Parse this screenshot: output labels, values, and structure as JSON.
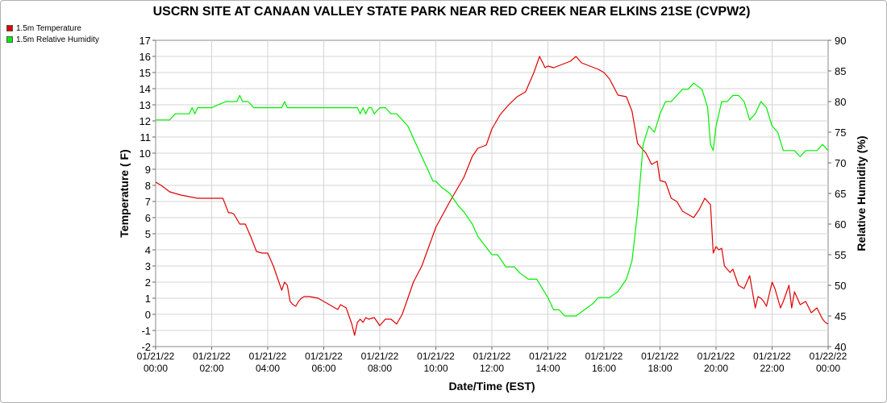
{
  "chart_data": {
    "type": "line",
    "title": "USCRN SITE AT CANAAN VALLEY STATE PARK NEAR RED CREEK NEAR ELKINS 21SE (CVPW2)",
    "xlabel": "Date/Time (EST)",
    "ylabel": "Temperature ( F)",
    "y2label": "Relative Humidity (%)",
    "ylim": [
      -2,
      17
    ],
    "y2lim": [
      40,
      90
    ],
    "xlim": [
      0,
      24
    ],
    "grid": true,
    "legend_position": "top-left",
    "x_tick_dates": [
      "01/21/22",
      "01/21/22",
      "01/21/22",
      "01/21/22",
      "01/21/22",
      "01/21/22",
      "01/21/22",
      "01/21/22",
      "01/21/22",
      "01/21/22",
      "01/21/22",
      "01/21/22",
      "01/22/22"
    ],
    "x_tick_times": [
      "00:00",
      "02:00",
      "04:00",
      "06:00",
      "08:00",
      "10:00",
      "12:00",
      "14:00",
      "16:00",
      "18:00",
      "20:00",
      "22:00",
      "00:00"
    ],
    "y_ticks": [
      "-2",
      "-1",
      "0",
      "1",
      "2",
      "3",
      "4",
      "5",
      "6",
      "7",
      "8",
      "9",
      "10",
      "11",
      "12",
      "13",
      "14",
      "15",
      "16",
      "17"
    ],
    "y2_ticks": [
      "40",
      "45",
      "50",
      "55",
      "60",
      "65",
      "70",
      "75",
      "80",
      "85",
      "90"
    ],
    "series": [
      {
        "name": "1.5m Temperature",
        "color": "#e00000",
        "axis": "left",
        "x": [
          0,
          0.2,
          0.35,
          0.5,
          0.7,
          0.9,
          1.2,
          1.5,
          1.8,
          2.1,
          2.4,
          2.6,
          2.7,
          2.8,
          3.0,
          3.2,
          3.4,
          3.6,
          3.8,
          3.9,
          4.0,
          4.2,
          4.4,
          4.5,
          4.6,
          4.7,
          4.8,
          4.9,
          5.0,
          5.1,
          5.2,
          5.3,
          5.5,
          5.8,
          6.0,
          6.2,
          6.4,
          6.5,
          6.6,
          6.8,
          7.0,
          7.1,
          7.2,
          7.3,
          7.4,
          7.5,
          7.6,
          7.8,
          8.0,
          8.2,
          8.4,
          8.6,
          8.7,
          8.8,
          9.0,
          9.2,
          9.5,
          10.0,
          10.5,
          11.0,
          11.3,
          11.5,
          11.8,
          12.0,
          12.3,
          12.6,
          12.9,
          13.2,
          13.5,
          13.7,
          13.9,
          14.0,
          14.2,
          14.5,
          14.8,
          15.0,
          15.2,
          15.5,
          15.8,
          16.0,
          16.2,
          16.5,
          16.8,
          17.0,
          17.2,
          17.4,
          17.5,
          17.7,
          17.9,
          18.0,
          18.2,
          18.4,
          18.6,
          18.8,
          19.0,
          19.2,
          19.4,
          19.6,
          19.7,
          19.8,
          19.9,
          20.0,
          20.1,
          20.2,
          20.3,
          20.5,
          20.6,
          20.8,
          21.0,
          21.2,
          21.4,
          21.5,
          21.6,
          21.7,
          21.8,
          22.0,
          22.1,
          22.3,
          22.4,
          22.6,
          22.7,
          22.8,
          23.0,
          23.2,
          23.4,
          23.6,
          23.8,
          23.9,
          24.0
        ],
        "values": [
          8.2,
          8.0,
          7.8,
          7.6,
          7.5,
          7.4,
          7.3,
          7.2,
          7.2,
          7.2,
          7.2,
          6.3,
          6.3,
          6.2,
          5.6,
          5.6,
          4.8,
          3.9,
          3.8,
          3.8,
          3.8,
          3.0,
          2.0,
          1.5,
          2.0,
          1.8,
          0.8,
          0.6,
          0.5,
          0.8,
          1.0,
          1.1,
          1.1,
          1.0,
          0.8,
          0.6,
          0.4,
          0.3,
          0.6,
          0.4,
          -0.6,
          -1.3,
          -0.5,
          -0.3,
          -0.5,
          -0.2,
          -0.3,
          -0.2,
          -0.7,
          -0.3,
          -0.3,
          -0.6,
          -0.3,
          0.0,
          1.0,
          2.0,
          3.0,
          5.4,
          7.0,
          8.5,
          9.8,
          10.3,
          10.5,
          11.5,
          12.4,
          13.0,
          13.5,
          13.8,
          15.0,
          16.0,
          15.3,
          15.4,
          15.3,
          15.5,
          15.7,
          16.0,
          15.6,
          15.4,
          15.2,
          15.0,
          14.6,
          13.6,
          13.5,
          12.6,
          10.6,
          10.2,
          10.0,
          9.3,
          9.5,
          8.3,
          8.2,
          7.2,
          7.0,
          6.4,
          6.2,
          6.0,
          6.5,
          7.2,
          7.0,
          6.8,
          3.8,
          4.2,
          4.0,
          4.1,
          3.0,
          2.6,
          2.8,
          1.8,
          1.6,
          2.4,
          0.4,
          1.1,
          1.0,
          0.8,
          0.5,
          2.0,
          1.6,
          0.4,
          0.8,
          1.8,
          0.4,
          1.4,
          0.6,
          0.8,
          0.1,
          0.4,
          -0.3,
          -0.5,
          -0.6
        ]
      },
      {
        "name": "1.5m Relative Humidity",
        "color": "#00ee00",
        "axis": "right",
        "x": [
          0,
          0.5,
          0.7,
          1.0,
          1.2,
          1.3,
          1.4,
          1.5,
          2.0,
          2.5,
          2.9,
          3.0,
          3.1,
          3.3,
          3.5,
          4.0,
          4.5,
          4.6,
          4.7,
          5.0,
          5.5,
          6.0,
          6.5,
          7.0,
          7.2,
          7.3,
          7.4,
          7.5,
          7.6,
          7.7,
          7.8,
          8.0,
          8.2,
          8.4,
          8.6,
          9.0,
          9.2,
          9.5,
          9.7,
          9.9,
          10.0,
          10.2,
          10.5,
          10.8,
          11.0,
          11.3,
          11.5,
          12.0,
          12.2,
          12.5,
          12.8,
          13.0,
          13.3,
          13.6,
          14.0,
          14.2,
          14.4,
          14.6,
          14.8,
          15.0,
          15.3,
          15.6,
          15.8,
          16.0,
          16.2,
          16.5,
          16.8,
          17.0,
          17.2,
          17.4,
          17.6,
          17.8,
          18.0,
          18.2,
          18.4,
          18.6,
          18.8,
          19.0,
          19.2,
          19.5,
          19.7,
          19.8,
          19.9,
          20.0,
          20.2,
          20.4,
          20.6,
          20.8,
          21.0,
          21.2,
          21.4,
          21.6,
          21.8,
          22.0,
          22.2,
          22.4,
          22.6,
          22.8,
          23.0,
          23.2,
          23.4,
          23.6,
          23.8,
          24.0
        ],
        "values": [
          77,
          77,
          78,
          78,
          78,
          79,
          78,
          79,
          79,
          80,
          80,
          81,
          80,
          80,
          79,
          79,
          79,
          80,
          79,
          79,
          79,
          79,
          79,
          79,
          79,
          78,
          79,
          78,
          79,
          79,
          78,
          79,
          79,
          78,
          78,
          76,
          74,
          71,
          69,
          67,
          67,
          66,
          65,
          63,
          62,
          60,
          58,
          55,
          55,
          53,
          53,
          52,
          51,
          51,
          48,
          46,
          46,
          45,
          45,
          45,
          46,
          47,
          48,
          48,
          48,
          49,
          51,
          54,
          62,
          73,
          76,
          75,
          78,
          80,
          80,
          81,
          82,
          82,
          83,
          82,
          79,
          73,
          72,
          76,
          80,
          80,
          81,
          81,
          80,
          77,
          78,
          80,
          79,
          76,
          75,
          72,
          72,
          72,
          71,
          72,
          72,
          72,
          73,
          72
        ]
      }
    ]
  }
}
